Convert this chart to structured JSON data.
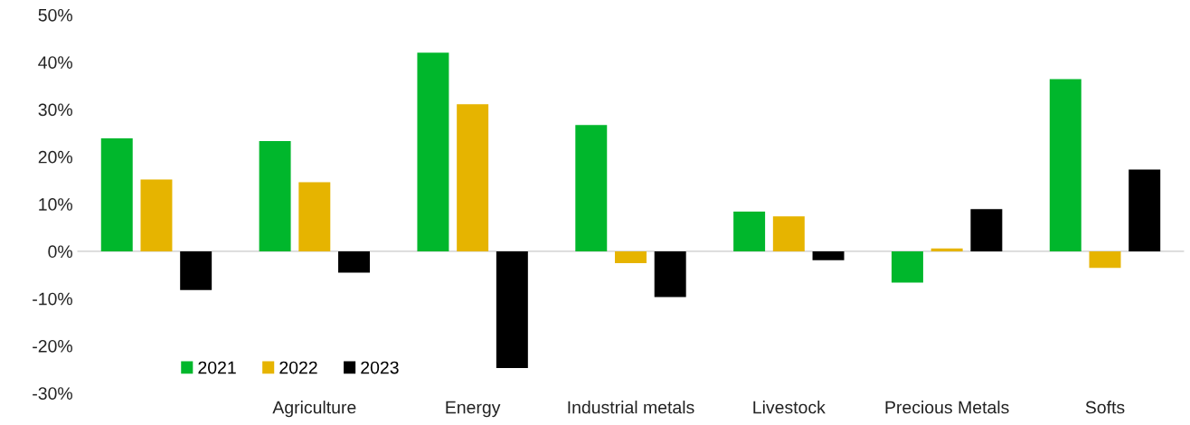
{
  "chart_data": {
    "type": "bar",
    "categories": [
      null,
      "Agriculture",
      "Energy",
      "Industrial metals",
      "Livestock",
      "Precious Metals",
      "Softs"
    ],
    "series": [
      {
        "name": "2021",
        "color": "#00b72c",
        "values": [
          23.9,
          23.3,
          42.0,
          26.7,
          8.4,
          -6.6,
          36.4
        ]
      },
      {
        "name": "2022",
        "color": "#e6b400",
        "values": [
          15.2,
          14.6,
          31.1,
          -2.5,
          7.4,
          0.6,
          -3.5
        ]
      },
      {
        "name": "2023",
        "color": "#000000",
        "values": [
          -8.2,
          -4.5,
          -24.7,
          -9.7,
          -1.9,
          8.9,
          17.3
        ]
      }
    ],
    "ylim": [
      -30,
      50
    ],
    "yticks": [
      {
        "value": -30,
        "label": "-30%"
      },
      {
        "value": -20,
        "label": "-20%"
      },
      {
        "value": -10,
        "label": "-10%"
      },
      {
        "value": 0,
        "label": "0%"
      },
      {
        "value": 10,
        "label": "10%"
      },
      {
        "value": 20,
        "label": "20%"
      },
      {
        "value": 30,
        "label": "30%"
      },
      {
        "value": 40,
        "label": "40%"
      },
      {
        "value": 50,
        "label": "50%"
      }
    ],
    "ref_lines": [
      {
        "axis": "y",
        "value": 0,
        "color": "#d9d9d9"
      }
    ],
    "grid": false,
    "legend": "lower left"
  }
}
